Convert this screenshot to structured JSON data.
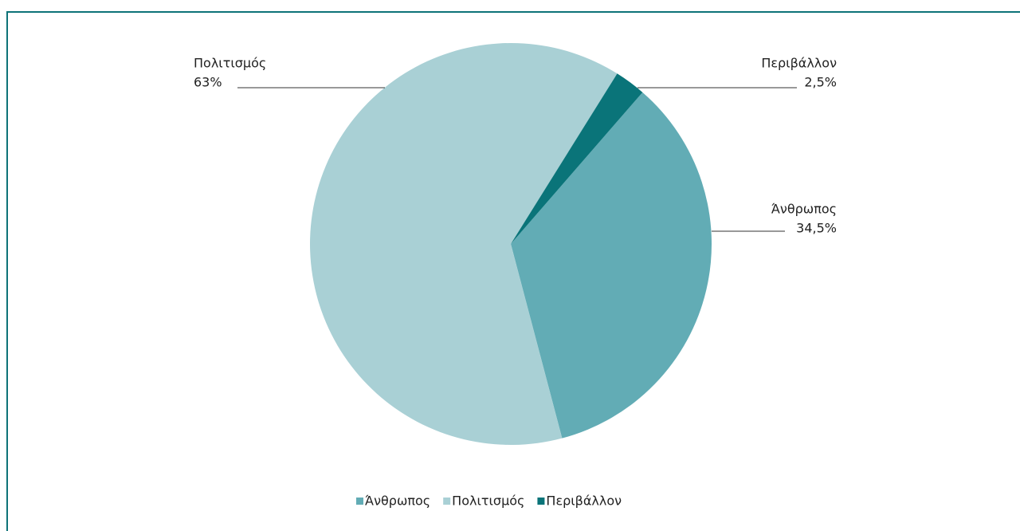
{
  "chart_data": {
    "type": "pie",
    "categories": [
      "Άνθρωπος",
      "Πολιτισμός",
      "Περιβάλλον"
    ],
    "values": [
      34.5,
      63,
      2.5
    ],
    "value_labels": [
      "34,5%",
      "63%",
      "2,5%"
    ],
    "colors": [
      "#62acb5",
      "#a9d0d5",
      "#0a7479"
    ],
    "legend": "bottom"
  }
}
